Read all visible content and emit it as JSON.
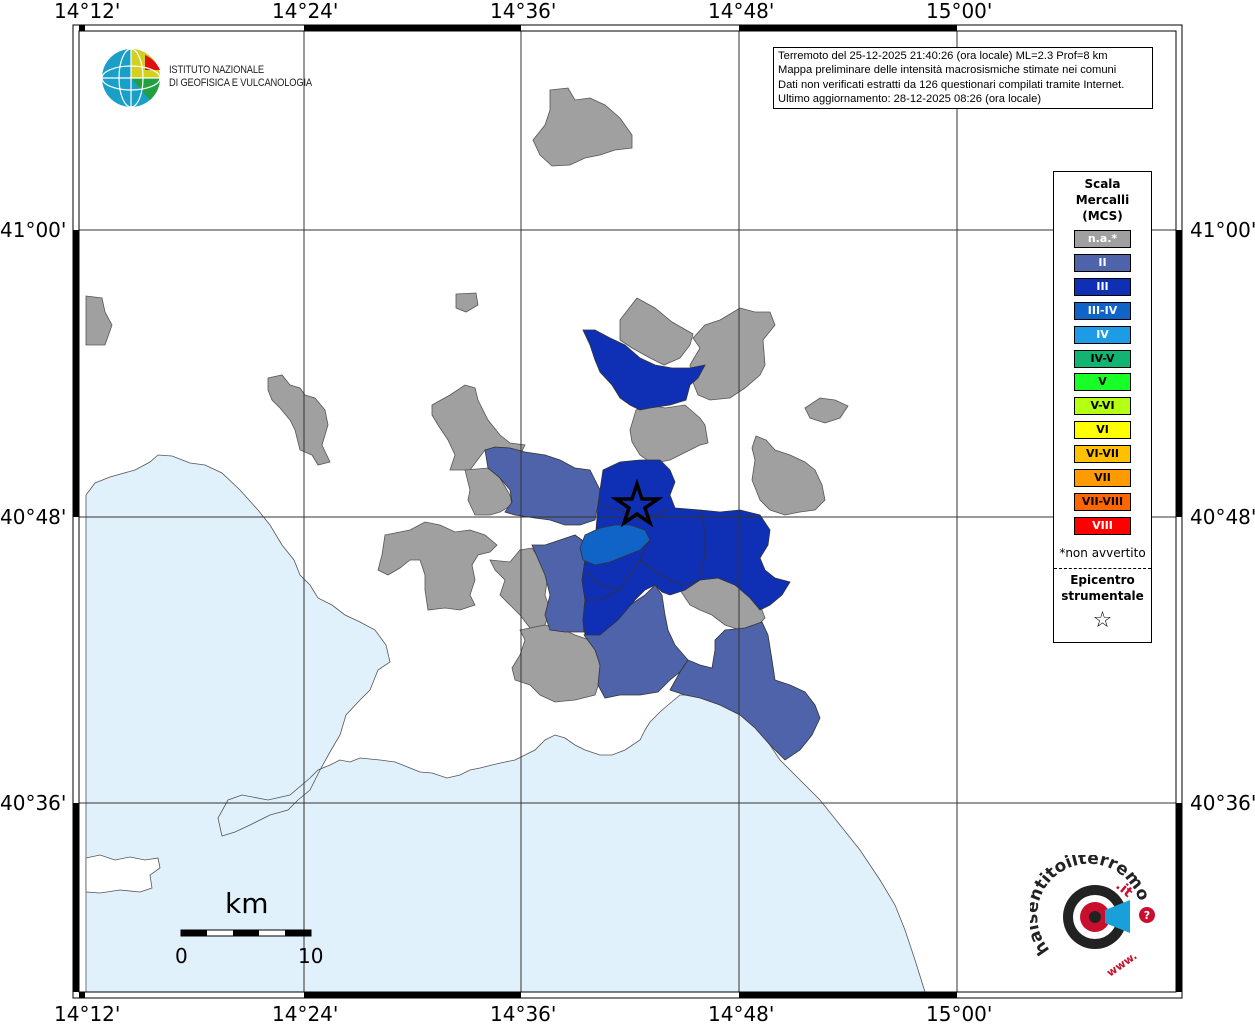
{
  "map": {
    "lon_labels": [
      "14°12'",
      "14°24'",
      "14°36'",
      "14°48'",
      "15°00'"
    ],
    "lat_labels": [
      "41°00'",
      "40°48'",
      "40°36'"
    ]
  },
  "info_box": {
    "line1": "Terremoto del 25-12-2025 21:40:26 (ora locale) ML=2.3 Prof=8 km",
    "line2": "Mappa preliminare delle intensità macrosismiche stimate nei comuni",
    "line3": "Dati non verificati estratti da 126 questionari compilati tramite Internet.",
    "line4": "Ultimo aggiornamento: 28-12-2025 08:26 (ora locale)"
  },
  "logo": {
    "line1": "ISTITUTO NAZIONALE",
    "line2": "DI GEOFISICA E VULCANOLOGIA"
  },
  "legend": {
    "title1": "Scala",
    "title2": "Mercalli",
    "title3": "(MCS)",
    "items": [
      {
        "label": "n.a.*",
        "color": "#a0a0a0",
        "text_color": "#ffffff"
      },
      {
        "label": "II",
        "color": "#4e63aa",
        "text_color": "#ffffff"
      },
      {
        "label": "III",
        "color": "#0f30b4",
        "text_color": "#ffffff"
      },
      {
        "label": "III-IV",
        "color": "#1064c8",
        "text_color": "#ffffff"
      },
      {
        "label": "IV",
        "color": "#1e9be6",
        "text_color": "#ffffff"
      },
      {
        "label": "IV-V",
        "color": "#12b472",
        "text_color": "#000000"
      },
      {
        "label": "V",
        "color": "#18ff28",
        "text_color": "#000000"
      },
      {
        "label": "V-VI",
        "color": "#b4ff14",
        "text_color": "#000000"
      },
      {
        "label": "VI",
        "color": "#ffff00",
        "text_color": "#000000"
      },
      {
        "label": "VI-VII",
        "color": "#ffc000",
        "text_color": "#000000"
      },
      {
        "label": "VII",
        "color": "#ff9b00",
        "text_color": "#000000"
      },
      {
        "label": "VII-VIII",
        "color": "#ff6600",
        "text_color": "#000000"
      },
      {
        "label": "VIII",
        "color": "#ff0000",
        "text_color": "#ffffff"
      }
    ],
    "note": "*non avvertito",
    "epi1": "Epicentro",
    "epi2": "strumentale",
    "epi_symbol": "☆"
  },
  "scalebar": {
    "unit": "km",
    "start": "0",
    "end": "10"
  },
  "badge": {
    "text_main": "haisentitoilterremoto",
    "text_tld": ".it",
    "text_www": "www."
  },
  "colors": {
    "sea": "#e1f1fc",
    "land": "#ffffff",
    "na": "#a0a0a0",
    "ii": "#4e63aa",
    "iii": "#0f30b4",
    "iii_iv": "#1064c8"
  }
}
